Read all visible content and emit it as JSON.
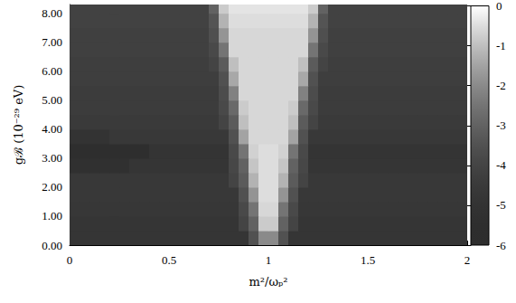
{
  "chart_data": {
    "type": "heatmap",
    "xlabel": "m²/ωₚ²",
    "ylabel": "gℬ (10⁻²⁹ eV)",
    "xlim": [
      0,
      2
    ],
    "ylim": [
      0,
      8.3
    ],
    "xticks": [
      0,
      0.5,
      1,
      1.5,
      2
    ],
    "yticks": [
      {
        "value": 0,
        "label": "0.00"
      },
      {
        "value": 1,
        "label": "1.00"
      },
      {
        "value": 2,
        "label": "2.00"
      },
      {
        "value": 3,
        "label": "3.00"
      },
      {
        "value": 4,
        "label": "4.00"
      },
      {
        "value": 5,
        "label": "5.00"
      },
      {
        "value": 6,
        "label": "6.00"
      },
      {
        "value": 7,
        "label": "7.00"
      },
      {
        "value": 8,
        "label": "8.00"
      }
    ],
    "x": [
      0.025,
      0.075,
      0.125,
      0.175,
      0.225,
      0.275,
      0.325,
      0.375,
      0.425,
      0.475,
      0.525,
      0.575,
      0.625,
      0.675,
      0.725,
      0.775,
      0.825,
      0.875,
      0.925,
      0.975,
      1.025,
      1.075,
      1.125,
      1.175,
      1.225,
      1.275,
      1.325,
      1.375,
      1.425,
      1.475,
      1.525,
      1.575,
      1.625,
      1.675,
      1.725,
      1.775,
      1.825,
      1.875,
      1.925,
      1.975
    ],
    "y": [
      0.25,
      0.75,
      1.25,
      1.75,
      2.25,
      2.75,
      3.25,
      3.75,
      4.25,
      4.75,
      5.25,
      5.75,
      6.25,
      6.75,
      7.25,
      7.75,
      8.25
    ],
    "cells": [
      [
        -4.8,
        -4.8,
        -4.8,
        -4.8,
        -4.8,
        -4.8,
        -4.8,
        -4.8,
        -4.8,
        -4.8,
        -4.8,
        -4.8,
        -4.8,
        -4.8,
        -4.8,
        -4.8,
        -4.8,
        -4.8,
        -3.5,
        -2.0,
        -2.0,
        -3.5,
        -4.8,
        -4.8,
        -4.8,
        -4.8,
        -4.8,
        -4.8,
        -4.8,
        -4.8,
        -4.8,
        -4.8,
        -4.8,
        -4.8,
        -4.8,
        -4.8,
        -4.8,
        -4.8,
        -4.8,
        -4.8
      ],
      [
        -4.8,
        -4.8,
        -4.8,
        -4.8,
        -4.8,
        -4.8,
        -4.8,
        -4.8,
        -4.8,
        -4.8,
        -4.8,
        -4.8,
        -4.8,
        -4.8,
        -4.8,
        -4.8,
        -4.8,
        -4.0,
        -3.0,
        -0.8,
        -0.8,
        -3.0,
        -4.0,
        -4.8,
        -4.8,
        -4.8,
        -4.8,
        -4.8,
        -4.8,
        -4.8,
        -4.8,
        -4.8,
        -4.8,
        -4.8,
        -4.8,
        -4.8,
        -4.8,
        -4.8,
        -4.8,
        -4.8
      ],
      [
        -4.7,
        -4.7,
        -4.7,
        -4.7,
        -4.7,
        -4.7,
        -4.7,
        -4.7,
        -4.7,
        -4.7,
        -4.7,
        -4.7,
        -4.7,
        -4.7,
        -4.7,
        -4.7,
        -4.7,
        -3.8,
        -2.5,
        -0.6,
        -0.6,
        -2.5,
        -3.8,
        -4.7,
        -4.7,
        -4.7,
        -4.7,
        -4.7,
        -4.7,
        -4.7,
        -4.7,
        -4.7,
        -4.7,
        -4.7,
        -4.7,
        -4.7,
        -4.7,
        -4.7,
        -4.7,
        -4.7
      ],
      [
        -4.6,
        -4.6,
        -4.6,
        -4.6,
        -4.6,
        -4.6,
        -4.6,
        -4.6,
        -4.6,
        -4.6,
        -4.6,
        -4.6,
        -4.6,
        -4.6,
        -4.6,
        -4.6,
        -4.6,
        -3.5,
        -1.8,
        -0.5,
        -0.5,
        -1.8,
        -3.5,
        -4.6,
        -4.6,
        -4.6,
        -4.6,
        -4.6,
        -4.6,
        -4.6,
        -4.6,
        -4.6,
        -4.6,
        -4.6,
        -4.6,
        -4.6,
        -4.6,
        -4.6,
        -4.6,
        -4.6
      ],
      [
        -4.6,
        -4.6,
        -4.6,
        -4.6,
        -4.6,
        -4.6,
        -4.6,
        -4.6,
        -4.6,
        -4.6,
        -4.6,
        -4.6,
        -4.6,
        -4.6,
        -4.6,
        -4.6,
        -4.0,
        -3.2,
        -1.2,
        -0.5,
        -0.5,
        -1.2,
        -3.2,
        -4.0,
        -4.6,
        -4.6,
        -4.6,
        -4.6,
        -4.6,
        -4.6,
        -4.6,
        -4.6,
        -4.6,
        -4.6,
        -4.6,
        -4.6,
        -4.6,
        -4.6,
        -4.6,
        -4.6
      ],
      [
        -5.3,
        -5.3,
        -5.3,
        -5.3,
        -5.3,
        -5.3,
        -4.8,
        -4.8,
        -4.8,
        -4.8,
        -4.8,
        -4.8,
        -4.8,
        -4.8,
        -4.8,
        -4.8,
        -3.9,
        -3.0,
        -0.9,
        -0.5,
        -0.5,
        -0.9,
        -3.0,
        -3.9,
        -4.8,
        -4.8,
        -4.8,
        -4.8,
        -4.8,
        -4.8,
        -4.8,
        -4.8,
        -4.8,
        -4.8,
        -4.8,
        -4.8,
        -4.8,
        -4.8,
        -4.8,
        -4.8
      ],
      [
        -5.5,
        -5.5,
        -5.5,
        -5.5,
        -5.5,
        -5.5,
        -5.5,
        -5.5,
        -4.9,
        -4.9,
        -4.9,
        -4.9,
        -4.9,
        -4.9,
        -4.9,
        -4.9,
        -3.8,
        -2.5,
        -0.7,
        -0.5,
        -0.5,
        -0.7,
        -2.5,
        -3.8,
        -4.9,
        -4.9,
        -4.9,
        -4.9,
        -4.9,
        -4.9,
        -4.9,
        -4.9,
        -4.9,
        -4.9,
        -4.9,
        -4.9,
        -4.9,
        -4.9,
        -4.9,
        -4.9
      ],
      [
        -5.0,
        -5.0,
        -5.0,
        -5.0,
        -4.6,
        -4.6,
        -4.6,
        -4.6,
        -4.6,
        -4.6,
        -4.6,
        -4.6,
        -4.6,
        -4.6,
        -4.6,
        -4.6,
        -3.5,
        -1.5,
        -0.6,
        -0.6,
        -0.6,
        -0.6,
        -1.5,
        -3.5,
        -4.6,
        -4.6,
        -4.6,
        -4.6,
        -4.6,
        -4.6,
        -4.6,
        -4.6,
        -4.6,
        -4.6,
        -4.6,
        -4.6,
        -4.6,
        -4.6,
        -4.6,
        -4.6
      ],
      [
        -4.5,
        -4.5,
        -4.5,
        -4.5,
        -4.5,
        -4.5,
        -4.5,
        -4.5,
        -4.5,
        -4.5,
        -4.5,
        -4.5,
        -4.5,
        -4.5,
        -4.5,
        -4.0,
        -3.2,
        -1.0,
        -0.6,
        -0.6,
        -0.6,
        -0.6,
        -1.0,
        -3.2,
        -4.0,
        -4.5,
        -4.5,
        -4.5,
        -4.5,
        -4.5,
        -4.5,
        -4.5,
        -4.5,
        -4.5,
        -4.5,
        -4.5,
        -4.5,
        -4.5,
        -4.5,
        -4.5
      ],
      [
        -4.4,
        -4.4,
        -4.4,
        -4.4,
        -4.4,
        -4.4,
        -4.4,
        -4.4,
        -4.4,
        -4.4,
        -4.4,
        -4.4,
        -4.4,
        -4.4,
        -4.4,
        -3.8,
        -2.8,
        -0.8,
        -0.6,
        -0.6,
        -0.6,
        -0.6,
        -0.8,
        -2.8,
        -3.8,
        -4.4,
        -4.4,
        -4.4,
        -4.4,
        -4.4,
        -4.4,
        -4.4,
        -4.4,
        -4.4,
        -4.4,
        -4.4,
        -4.4,
        -4.4,
        -4.4,
        -4.4
      ],
      [
        -4.4,
        -4.4,
        -4.4,
        -4.4,
        -4.4,
        -4.4,
        -4.4,
        -4.4,
        -4.4,
        -4.4,
        -4.4,
        -4.4,
        -4.4,
        -4.4,
        -4.4,
        -3.7,
        -2.2,
        -0.6,
        -0.6,
        -0.6,
        -0.6,
        -0.6,
        -0.6,
        -2.2,
        -3.7,
        -4.4,
        -4.4,
        -4.4,
        -4.4,
        -4.4,
        -4.4,
        -4.4,
        -4.4,
        -4.4,
        -4.4,
        -4.4,
        -4.4,
        -4.4,
        -4.4,
        -4.4
      ],
      [
        -4.3,
        -4.3,
        -4.3,
        -4.3,
        -4.3,
        -4.3,
        -4.3,
        -4.3,
        -4.3,
        -4.3,
        -4.3,
        -4.3,
        -4.3,
        -4.3,
        -4.3,
        -3.5,
        -1.4,
        -0.6,
        -0.6,
        -0.6,
        -0.6,
        -0.6,
        -0.6,
        -1.4,
        -3.5,
        -4.3,
        -4.3,
        -4.3,
        -4.3,
        -4.3,
        -4.3,
        -4.3,
        -4.3,
        -4.3,
        -4.3,
        -4.3,
        -4.3,
        -4.3,
        -4.3,
        -4.3
      ],
      [
        -4.3,
        -4.3,
        -4.3,
        -4.3,
        -4.3,
        -4.3,
        -4.3,
        -4.3,
        -4.3,
        -4.3,
        -4.3,
        -4.3,
        -4.3,
        -4.3,
        -4.0,
        -3.2,
        -1.0,
        -0.6,
        -0.6,
        -0.6,
        -0.6,
        -0.6,
        -0.6,
        -1.0,
        -3.2,
        -4.0,
        -4.3,
        -4.3,
        -4.3,
        -4.3,
        -4.3,
        -4.3,
        -4.3,
        -4.3,
        -4.3,
        -4.3,
        -4.3,
        -4.3,
        -4.3,
        -4.3
      ],
      [
        -4.2,
        -4.2,
        -4.2,
        -4.2,
        -4.2,
        -4.2,
        -4.2,
        -4.2,
        -4.2,
        -4.2,
        -4.2,
        -4.2,
        -4.2,
        -4.2,
        -3.8,
        -2.5,
        -0.6,
        -0.6,
        -0.6,
        -0.6,
        -0.6,
        -0.6,
        -0.6,
        -0.6,
        -2.5,
        -3.8,
        -4.2,
        -4.2,
        -4.2,
        -4.2,
        -4.2,
        -4.2,
        -4.2,
        -4.2,
        -4.2,
        -4.2,
        -4.2,
        -4.2,
        -4.2,
        -4.2
      ],
      [
        -4.2,
        -4.2,
        -4.2,
        -4.2,
        -4.2,
        -4.2,
        -4.2,
        -4.2,
        -4.2,
        -4.2,
        -4.2,
        -4.2,
        -4.2,
        -4.2,
        -3.6,
        -1.8,
        -0.6,
        -0.6,
        -0.6,
        -0.6,
        -0.6,
        -0.6,
        -0.6,
        -0.6,
        -1.8,
        -3.6,
        -4.2,
        -4.2,
        -4.2,
        -4.2,
        -4.2,
        -4.2,
        -4.2,
        -4.2,
        -4.2,
        -4.2,
        -4.2,
        -4.2,
        -4.2,
        -4.2
      ],
      [
        -4.1,
        -4.1,
        -4.1,
        -4.1,
        -4.1,
        -4.1,
        -4.1,
        -4.1,
        -4.1,
        -4.1,
        -4.1,
        -4.1,
        -4.1,
        -4.1,
        -3.4,
        -1.2,
        -0.5,
        -0.5,
        -0.5,
        -0.5,
        -0.5,
        -0.5,
        -0.5,
        -0.5,
        -1.2,
        -3.4,
        -4.1,
        -4.1,
        -4.1,
        -4.1,
        -4.1,
        -4.1,
        -4.1,
        -4.1,
        -4.1,
        -4.1,
        -4.1,
        -4.1,
        -4.1,
        -4.1
      ],
      [
        -4.1,
        -4.1,
        -4.1,
        -4.1,
        -4.1,
        -4.1,
        -4.1,
        -4.1,
        -4.1,
        -4.1,
        -4.1,
        -4.1,
        -4.1,
        -4.1,
        -3.0,
        -0.8,
        -0.4,
        -0.4,
        -0.4,
        -0.4,
        -0.4,
        -0.4,
        -0.4,
        -0.4,
        -0.8,
        -3.0,
        -4.1,
        -4.1,
        -4.1,
        -4.1,
        -4.1,
        -4.1,
        -4.1,
        -4.1,
        -4.1,
        -4.1,
        -4.1,
        -4.1,
        -4.1,
        -4.1
      ]
    ],
    "colorbar": {
      "range": [
        -6,
        0
      ],
      "ticks": [
        0,
        -1,
        -2,
        -3,
        -4,
        -5,
        -6
      ]
    }
  }
}
